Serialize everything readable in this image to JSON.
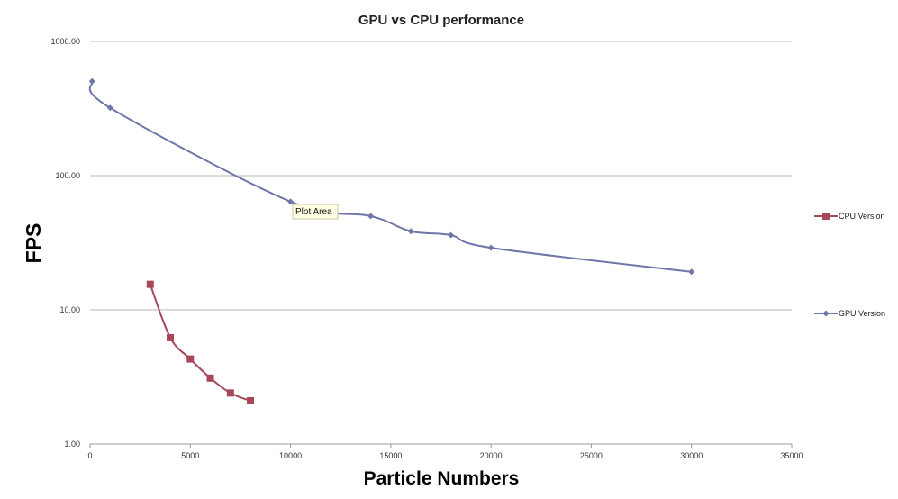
{
  "chart_data": {
    "type": "line",
    "title": "GPU vs CPU performance",
    "xlabel": "Particle Numbers",
    "ylabel": "FPS",
    "xlim": [
      0,
      35000
    ],
    "x_ticks": [
      0,
      5000,
      10000,
      15000,
      20000,
      25000,
      30000,
      35000
    ],
    "ylim": [
      1,
      1000
    ],
    "y_scale": "log",
    "y_ticks": [
      "1.00",
      "10.00",
      "100.00",
      "1000.00"
    ],
    "y_tick_values": [
      1,
      10,
      100,
      1000
    ],
    "grid": "horizontal",
    "legend_position": "right",
    "series": [
      {
        "name": "CPU Version",
        "color": "#a7475a",
        "marker": "square",
        "x": [
          3000,
          4000,
          5000,
          6000,
          7000,
          8000
        ],
        "y": [
          15.5,
          6.2,
          4.3,
          3.1,
          2.4,
          2.1
        ]
      },
      {
        "name": "GPU Version",
        "color": "#6f76a8",
        "marker": "diamond",
        "x": [
          100,
          1000,
          10000,
          14000,
          16000,
          18000,
          20000,
          30000
        ],
        "y": [
          505,
          320,
          64,
          50,
          38.5,
          36,
          29,
          19.2
        ]
      }
    ],
    "annotations": [
      "Plot Area"
    ]
  }
}
